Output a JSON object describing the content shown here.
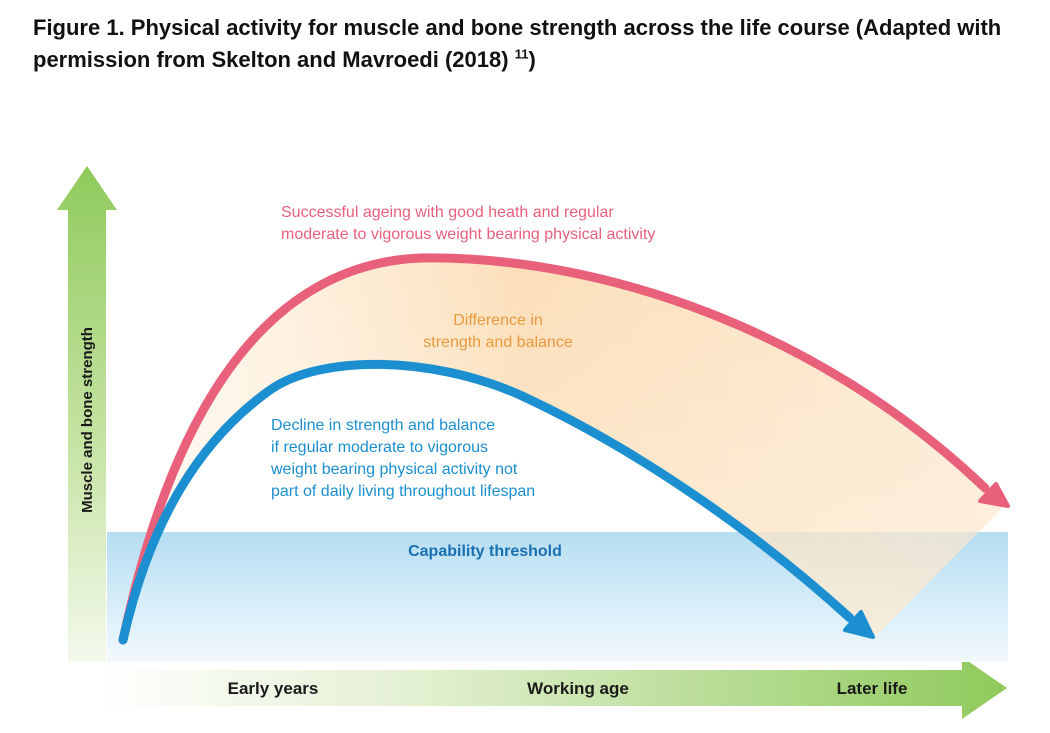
{
  "figure": {
    "caption_main": "Figure 1. Physical activity for muscle and bone strength across the life course (Adapted with permission from Skelton and Mavroedi (2018) ",
    "caption_ref": "11",
    "caption_close": ")"
  },
  "axes": {
    "y_label": "Muscle and bone strength",
    "x_stage_1": "Early years",
    "x_stage_2": "Working age",
    "x_stage_3": "Later life"
  },
  "annotations": {
    "successful_line_1": "Successful ageing with good heath and regular",
    "successful_line_2": "moderate to vigorous weight bearing physical activity",
    "difference_line_1": "Difference in",
    "difference_line_2": "strength and balance",
    "decline_line_1": "Decline in strength and balance",
    "decline_line_2": "if regular moderate to vigorous",
    "decline_line_3": "weight bearing physical activity not",
    "decline_line_4": "part of daily living throughout lifespan",
    "threshold": "Capability threshold"
  },
  "colors": {
    "successful_curve": "#e8607a",
    "decline_curve": "#1b8fd0",
    "difference_text": "#e89a3c",
    "threshold_text": "#1a6fb0",
    "axis_arrow": "#9ccf6a",
    "threshold_band": "#bfe3f4"
  }
}
